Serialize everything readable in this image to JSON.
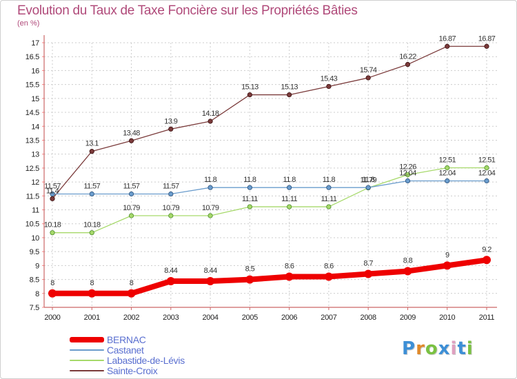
{
  "header": {
    "title": "Evolution du Taux de Taxe Foncière sur les Propriétés Bâties",
    "unit": "(en %)"
  },
  "logo": {
    "text": "Proxiti",
    "letter_colors": [
      "#3d8fd6",
      "#e08a2b",
      "#7ac142",
      "#3d8fd6",
      "#e0a0c0",
      "#3d8fd6",
      "#7ac142"
    ]
  },
  "chart_data": {
    "type": "line",
    "x": [
      "2000",
      "2001",
      "2002",
      "2003",
      "2004",
      "2005",
      "2006",
      "2007",
      "2008",
      "2009",
      "2010",
      "2011"
    ],
    "ylim": [
      7.5,
      17
    ],
    "yticks": [
      "7.5",
      "8",
      "8.5",
      "9",
      "9.5",
      "10",
      "10.5",
      "11",
      "11.5",
      "12",
      "12.5",
      "13",
      "13.5",
      "14",
      "14.5",
      "15",
      "15.5",
      "16",
      "16.5",
      "17"
    ],
    "grid": true,
    "legend_position": "bottom-left",
    "series": [
      {
        "name": "BERNAC",
        "color": "#ee0000",
        "values": [
          8,
          8,
          8,
          8.44,
          8.44,
          8.5,
          8.6,
          8.6,
          8.7,
          8.8,
          9,
          9.2
        ],
        "labels": [
          "8",
          "8",
          "8",
          "8.44",
          "8.44",
          "8.5",
          "8.6",
          "8.6",
          "8.7",
          "8.8",
          "9",
          "9.2"
        ]
      },
      {
        "name": "Castanet",
        "color": "#6a9ccc",
        "values": [
          11.57,
          11.57,
          11.57,
          11.57,
          11.8,
          11.8,
          11.8,
          11.8,
          11.8,
          12.04,
          12.04,
          12.04
        ],
        "labels": [
          "11.57",
          "11.57",
          "11.57",
          "11.57",
          "11.8",
          "11.8",
          "11.8",
          "11.8",
          "11.8",
          "12.04",
          "12.04",
          "12.04"
        ]
      },
      {
        "name": "Labastide-de-Lévis",
        "color": "#a6d96a",
        "values": [
          10.18,
          10.18,
          10.79,
          10.79,
          10.79,
          11.11,
          11.11,
          11.11,
          11.79,
          12.26,
          12.51,
          12.51
        ],
        "labels": [
          "10.18",
          "10.18",
          "10.79",
          "10.79",
          "10.79",
          "11.11",
          "11.11",
          "11.11",
          "11.79",
          "12.26",
          "12.51",
          "12.51"
        ]
      },
      {
        "name": "Sainte-Croix",
        "color": "#7a3a3a",
        "values": [
          11.4,
          13.1,
          13.48,
          13.9,
          14.18,
          15.13,
          15.13,
          15.43,
          15.74,
          16.22,
          16.87,
          16.87
        ],
        "labels": [
          "11.4",
          "13.1",
          "13.48",
          "13.9",
          "14.18",
          "15.13",
          "15.13",
          "15.43",
          "15.74",
          "16.22",
          "16.87",
          "16.87"
        ]
      }
    ]
  }
}
